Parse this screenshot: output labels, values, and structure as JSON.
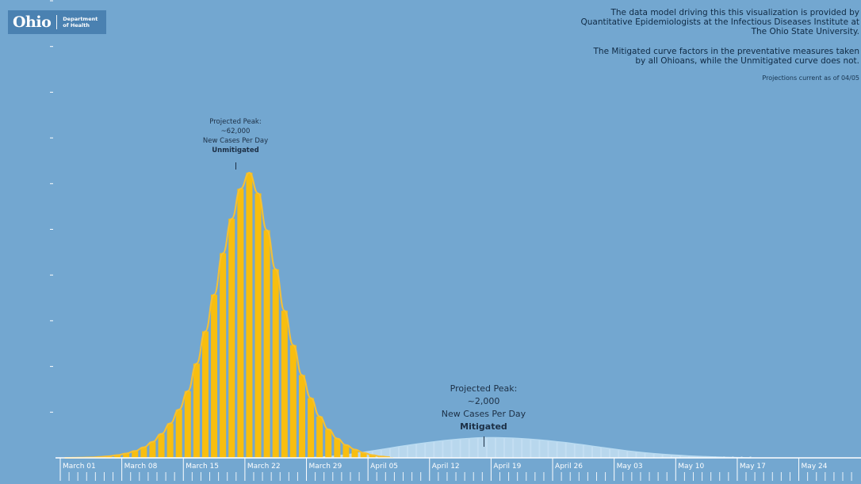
{
  "logo": {
    "name": "Ohio",
    "dept_line1": "Department",
    "dept_line2": "of Health"
  },
  "notes": {
    "attribution": [
      "The data model driving this this visualization is provided by",
      "Quantitative Epidemiologists at the Infectious Diseases Institute at",
      "The Ohio State University."
    ],
    "mitigation": [
      "The Mitigated curve factors in the preventative measures taken",
      "by all Ohioans, while the Unmitigated curve does not."
    ],
    "current": "Projections current as of 04/05"
  },
  "annotations": {
    "unmitigated": {
      "line1": "Projected Peak:",
      "line2": "~62,000",
      "line3": "New Cases Per Day",
      "line4": "Unmitigated"
    },
    "mitigated": {
      "line1": "Projected Peak:",
      "line2": "~2,000",
      "line3": "New Cases Per Day",
      "line4": "Mitigated"
    }
  },
  "colors": {
    "background": "#73a7d0",
    "unmitigated": "#f8be0f",
    "unmitigated_line": "#f6c033",
    "mitigated": "#cfe7f7",
    "mitigated_line": "#b9dbf1",
    "axis": "#ffffff"
  },
  "chart_data": {
    "type": "bar",
    "x_tick_labels": [
      "March 01",
      "March 08",
      "March 15",
      "March 22",
      "March 29",
      "April 05",
      "April 12",
      "April 19",
      "April 26",
      "May 03",
      "May 10",
      "May 17",
      "May 24"
    ],
    "ylim": [
      0,
      62000
    ],
    "y_tick_count": 10,
    "series": [
      {
        "name": "Unmitigated",
        "start_date": "2020-03-01",
        "values": [
          0,
          20,
          50,
          100,
          200,
          350,
          600,
          950,
          1500,
          2300,
          3500,
          5200,
          7500,
          10500,
          14500,
          20500,
          27500,
          35500,
          44500,
          52000,
          58500,
          62000,
          57500,
          49500,
          41000,
          32000,
          24500,
          18000,
          13000,
          9000,
          6200,
          4200,
          2800,
          1800,
          1100,
          600,
          300,
          150
        ]
      },
      {
        "name": "Mitigated",
        "start_date": "2020-03-01",
        "values": [
          0,
          0,
          0,
          0,
          0,
          0,
          0,
          0,
          0,
          0,
          0,
          0,
          0,
          0,
          0,
          0,
          0,
          0,
          0,
          0,
          0,
          0,
          0,
          0,
          0,
          0,
          0,
          0,
          20,
          60,
          120,
          200,
          300,
          420,
          550,
          680,
          820,
          960,
          1100,
          1230,
          1360,
          1480,
          1590,
          1690,
          1780,
          1860,
          1920,
          1970,
          2000,
          2000,
          1980,
          1950,
          1900,
          1840,
          1770,
          1690,
          1600,
          1500,
          1390,
          1280,
          1160,
          1040,
          920,
          800,
          690,
          590,
          500,
          420,
          350,
          290,
          240,
          190,
          150,
          120,
          90,
          60,
          40,
          20,
          10
        ]
      }
    ]
  }
}
